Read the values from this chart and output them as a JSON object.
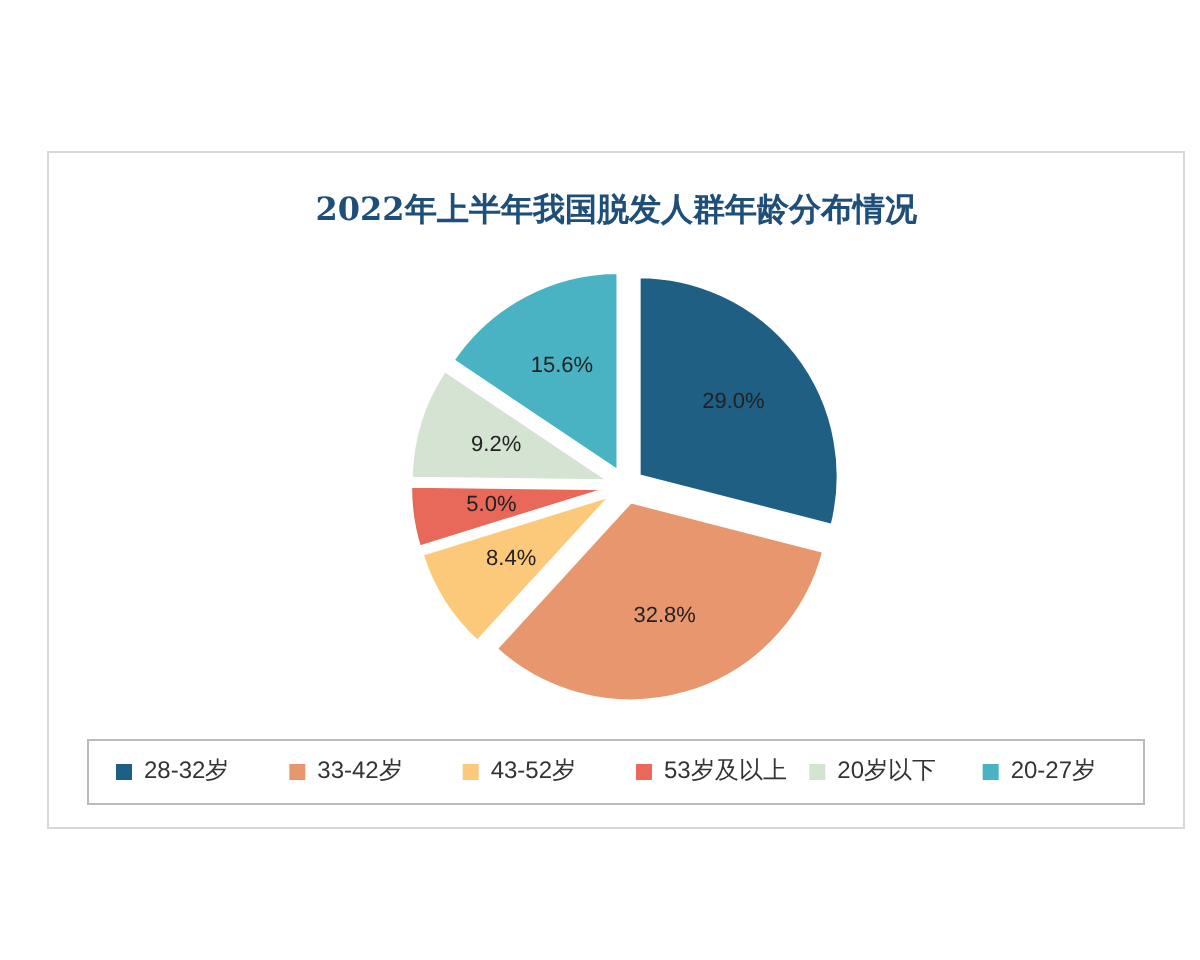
{
  "chart_data": {
    "type": "pie",
    "title": "2022年上半年我国脱发人群年龄分布情况",
    "categories": [
      "28-32岁",
      "33-42岁",
      "43-52岁",
      "53岁及以上",
      "20岁以下",
      "20-27岁"
    ],
    "values": [
      29.0,
      32.8,
      8.4,
      5.0,
      9.2,
      15.6
    ],
    "value_labels": [
      "29.0%",
      "32.8%",
      "8.4%",
      "5.0%",
      "9.2%",
      "15.6%"
    ],
    "colors": [
      "#1f5f84",
      "#e8966e",
      "#fcc97a",
      "#e8685a",
      "#d5e3d3",
      "#4ab3c3"
    ],
    "legend": "bottom"
  }
}
